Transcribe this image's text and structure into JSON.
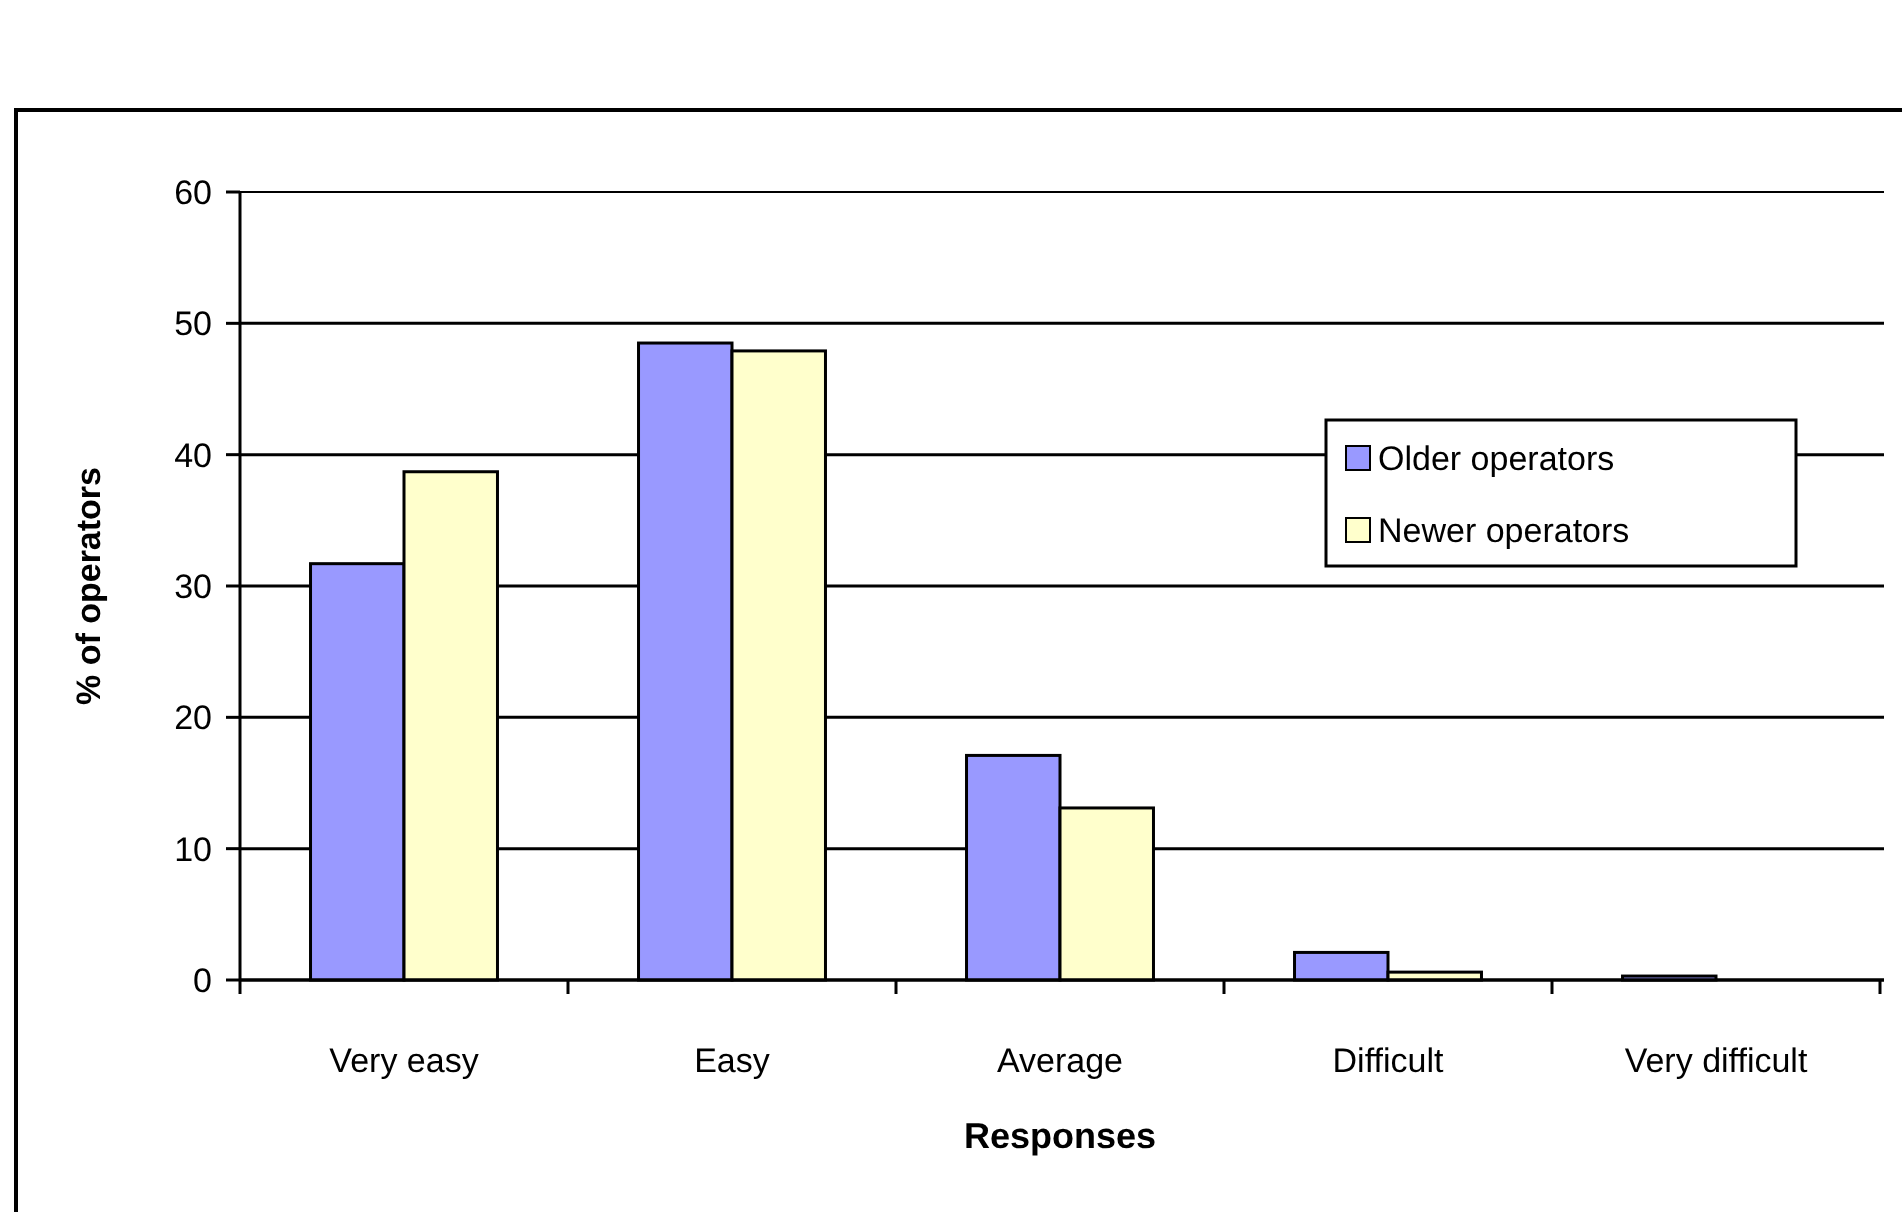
{
  "chart_data": {
    "type": "bar",
    "xlabel": "Responses",
    "ylabel": "% of operators",
    "categories": [
      "Very easy",
      "Easy",
      "Average",
      "Difficult",
      "Very difficult"
    ],
    "series": [
      {
        "name": "Older operators",
        "color": "#9999ff",
        "values": [
          31.7,
          48.5,
          17.1,
          2.1,
          0.3
        ]
      },
      {
        "name": "Newer operators",
        "color": "#ffffcc",
        "values": [
          38.7,
          47.9,
          13.1,
          0.6,
          0
        ]
      }
    ],
    "ylim": [
      0,
      60
    ],
    "yticks": [
      0,
      10,
      20,
      30,
      40,
      50,
      60
    ],
    "grid": "y",
    "legend": "right"
  }
}
